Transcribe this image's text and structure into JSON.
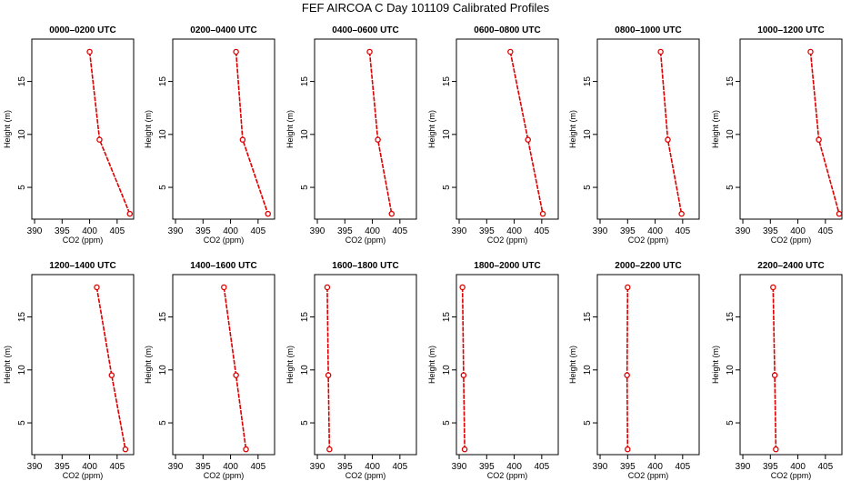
{
  "figure": {
    "title": "FEF AIRCOA C  Day 101109  Calibrated Profiles"
  },
  "chart_data": [
    {
      "type": "line",
      "title": "0000–0200 UTC",
      "xlabel": "CO2 (ppm)",
      "ylabel": "Height (m)",
      "xlim": [
        389.5,
        408
      ],
      "ylim": [
        2,
        19
      ],
      "x_ticks": [
        390,
        395,
        400,
        405
      ],
      "y_ticks": [
        5,
        10,
        15
      ],
      "grid": false,
      "series": [
        {
          "color": "#dd0000",
          "points": [
            {
              "x": 400.0,
              "y": 17.8
            },
            {
              "x": 401.8,
              "y": 9.5
            },
            {
              "x": 407.3,
              "y": 2.5
            }
          ]
        }
      ]
    },
    {
      "type": "line",
      "title": "0200–0400 UTC",
      "xlabel": "CO2 (ppm)",
      "ylabel": "Height (m)",
      "xlim": [
        389.5,
        408
      ],
      "ylim": [
        2,
        19
      ],
      "x_ticks": [
        390,
        395,
        400,
        405
      ],
      "y_ticks": [
        5,
        10,
        15
      ],
      "grid": false,
      "series": [
        {
          "color": "#dd0000",
          "points": [
            {
              "x": 401.0,
              "y": 17.8
            },
            {
              "x": 402.2,
              "y": 9.5
            },
            {
              "x": 406.8,
              "y": 2.5
            }
          ]
        }
      ]
    },
    {
      "type": "line",
      "title": "0400–0600 UTC",
      "xlabel": "CO2 (ppm)",
      "ylabel": "Height (m)",
      "xlim": [
        389.5,
        408
      ],
      "ylim": [
        2,
        19
      ],
      "x_ticks": [
        390,
        395,
        400,
        405
      ],
      "y_ticks": [
        5,
        10,
        15
      ],
      "grid": false,
      "series": [
        {
          "color": "#dd0000",
          "points": [
            {
              "x": 399.5,
              "y": 17.8
            },
            {
              "x": 401.0,
              "y": 9.5
            },
            {
              "x": 403.5,
              "y": 2.5
            }
          ]
        }
      ]
    },
    {
      "type": "line",
      "title": "0600–0800 UTC",
      "xlabel": "CO2 (ppm)",
      "ylabel": "Height (m)",
      "xlim": [
        389.5,
        408
      ],
      "ylim": [
        2,
        19
      ],
      "x_ticks": [
        390,
        395,
        400,
        405
      ],
      "y_ticks": [
        5,
        10,
        15
      ],
      "grid": false,
      "series": [
        {
          "color": "#dd0000",
          "points": [
            {
              "x": 399.3,
              "y": 17.8
            },
            {
              "x": 402.5,
              "y": 9.5
            },
            {
              "x": 405.2,
              "y": 2.5
            }
          ]
        }
      ]
    },
    {
      "type": "line",
      "title": "0800–1000 UTC",
      "xlabel": "CO2 (ppm)",
      "ylabel": "Height (m)",
      "xlim": [
        389.5,
        408
      ],
      "ylim": [
        2,
        19
      ],
      "x_ticks": [
        390,
        395,
        400,
        405
      ],
      "y_ticks": [
        5,
        10,
        15
      ],
      "grid": false,
      "series": [
        {
          "color": "#dd0000",
          "points": [
            {
              "x": 401.0,
              "y": 17.8
            },
            {
              "x": 402.3,
              "y": 9.5
            },
            {
              "x": 404.8,
              "y": 2.5
            }
          ]
        }
      ]
    },
    {
      "type": "line",
      "title": "1000–1200 UTC",
      "xlabel": "CO2 (ppm)",
      "ylabel": "Height (m)",
      "xlim": [
        389.5,
        408
      ],
      "ylim": [
        2,
        19
      ],
      "x_ticks": [
        390,
        395,
        400,
        405
      ],
      "y_ticks": [
        5,
        10,
        15
      ],
      "grid": false,
      "series": [
        {
          "color": "#dd0000",
          "points": [
            {
              "x": 402.3,
              "y": 17.8
            },
            {
              "x": 403.8,
              "y": 9.5
            },
            {
              "x": 407.5,
              "y": 2.5
            }
          ]
        }
      ]
    },
    {
      "type": "line",
      "title": "1200–1400 UTC",
      "xlabel": "CO2 (ppm)",
      "ylabel": "Height (m)",
      "xlim": [
        389.5,
        408
      ],
      "ylim": [
        2,
        19
      ],
      "x_ticks": [
        390,
        395,
        400,
        405
      ],
      "y_ticks": [
        5,
        10,
        15
      ],
      "grid": false,
      "series": [
        {
          "color": "#dd0000",
          "points": [
            {
              "x": 401.3,
              "y": 17.8
            },
            {
              "x": 404.0,
              "y": 9.5
            },
            {
              "x": 406.5,
              "y": 2.5
            }
          ]
        }
      ]
    },
    {
      "type": "line",
      "title": "1400–1600 UTC",
      "xlabel": "CO2 (ppm)",
      "ylabel": "Height (m)",
      "xlim": [
        389.5,
        408
      ],
      "ylim": [
        2,
        19
      ],
      "x_ticks": [
        390,
        395,
        400,
        405
      ],
      "y_ticks": [
        5,
        10,
        15
      ],
      "grid": false,
      "series": [
        {
          "color": "#dd0000",
          "points": [
            {
              "x": 398.8,
              "y": 17.8
            },
            {
              "x": 401.0,
              "y": 9.5
            },
            {
              "x": 402.8,
              "y": 2.5
            }
          ]
        }
      ]
    },
    {
      "type": "line",
      "title": "1600–1800 UTC",
      "xlabel": "CO2 (ppm)",
      "ylabel": "Height (m)",
      "xlim": [
        389.5,
        408
      ],
      "ylim": [
        2,
        19
      ],
      "x_ticks": [
        390,
        395,
        400,
        405
      ],
      "y_ticks": [
        5,
        10,
        15
      ],
      "grid": false,
      "series": [
        {
          "color": "#dd0000",
          "points": [
            {
              "x": 391.8,
              "y": 17.8
            },
            {
              "x": 392.0,
              "y": 9.5
            },
            {
              "x": 392.2,
              "y": 2.5
            }
          ]
        }
      ]
    },
    {
      "type": "line",
      "title": "1800–2000 UTC",
      "xlabel": "CO2 (ppm)",
      "ylabel": "Height (m)",
      "xlim": [
        389.5,
        408
      ],
      "ylim": [
        2,
        19
      ],
      "x_ticks": [
        390,
        395,
        400,
        405
      ],
      "y_ticks": [
        5,
        10,
        15
      ],
      "grid": false,
      "series": [
        {
          "color": "#dd0000",
          "points": [
            {
              "x": 390.6,
              "y": 17.8
            },
            {
              "x": 390.8,
              "y": 9.5
            },
            {
              "x": 391.0,
              "y": 2.5
            }
          ]
        }
      ]
    },
    {
      "type": "line",
      "title": "2000–2200 UTC",
      "xlabel": "CO2 (ppm)",
      "ylabel": "Height (m)",
      "xlim": [
        389.5,
        408
      ],
      "ylim": [
        2,
        19
      ],
      "x_ticks": [
        390,
        395,
        400,
        405
      ],
      "y_ticks": [
        5,
        10,
        15
      ],
      "grid": false,
      "series": [
        {
          "color": "#dd0000",
          "points": [
            {
              "x": 395.0,
              "y": 17.8
            },
            {
              "x": 394.9,
              "y": 9.5
            },
            {
              "x": 395.0,
              "y": 2.5
            }
          ]
        }
      ]
    },
    {
      "type": "line",
      "title": "2200–2400 UTC",
      "xlabel": "CO2 (ppm)",
      "ylabel": "Height (m)",
      "xlim": [
        389.5,
        408
      ],
      "ylim": [
        2,
        19
      ],
      "x_ticks": [
        390,
        395,
        400,
        405
      ],
      "y_ticks": [
        5,
        10,
        15
      ],
      "grid": false,
      "series": [
        {
          "color": "#dd0000",
          "points": [
            {
              "x": 395.5,
              "y": 17.8
            },
            {
              "x": 395.8,
              "y": 9.5
            },
            {
              "x": 396.0,
              "y": 2.5
            }
          ]
        }
      ]
    }
  ]
}
